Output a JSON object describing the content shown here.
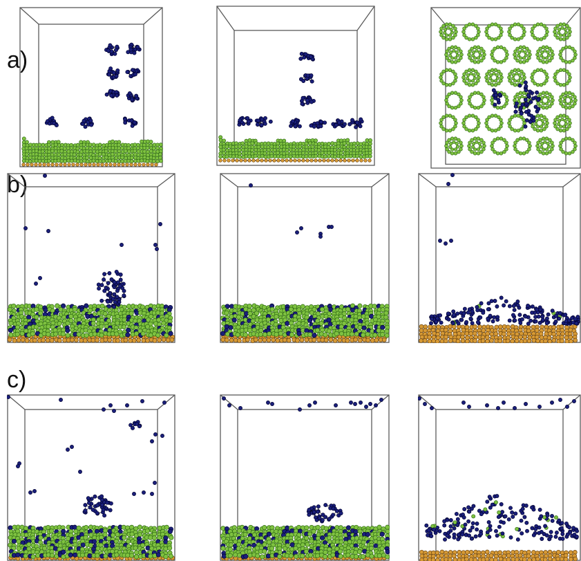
{
  "figure": {
    "rows": [
      {
        "label": "a)"
      },
      {
        "label": "b)"
      },
      {
        "label": "c)"
      }
    ]
  },
  "colors": {
    "background": "#ffffff",
    "box_edge": "#5a5a5a",
    "carbon_green": "#7fc241",
    "carbon_green_dark": "#2f6a14",
    "metal_blue": "#1a1f7a",
    "metal_blue_dark": "#000030",
    "substrate_orange": "#d79a35",
    "bond": "#101010"
  }
}
